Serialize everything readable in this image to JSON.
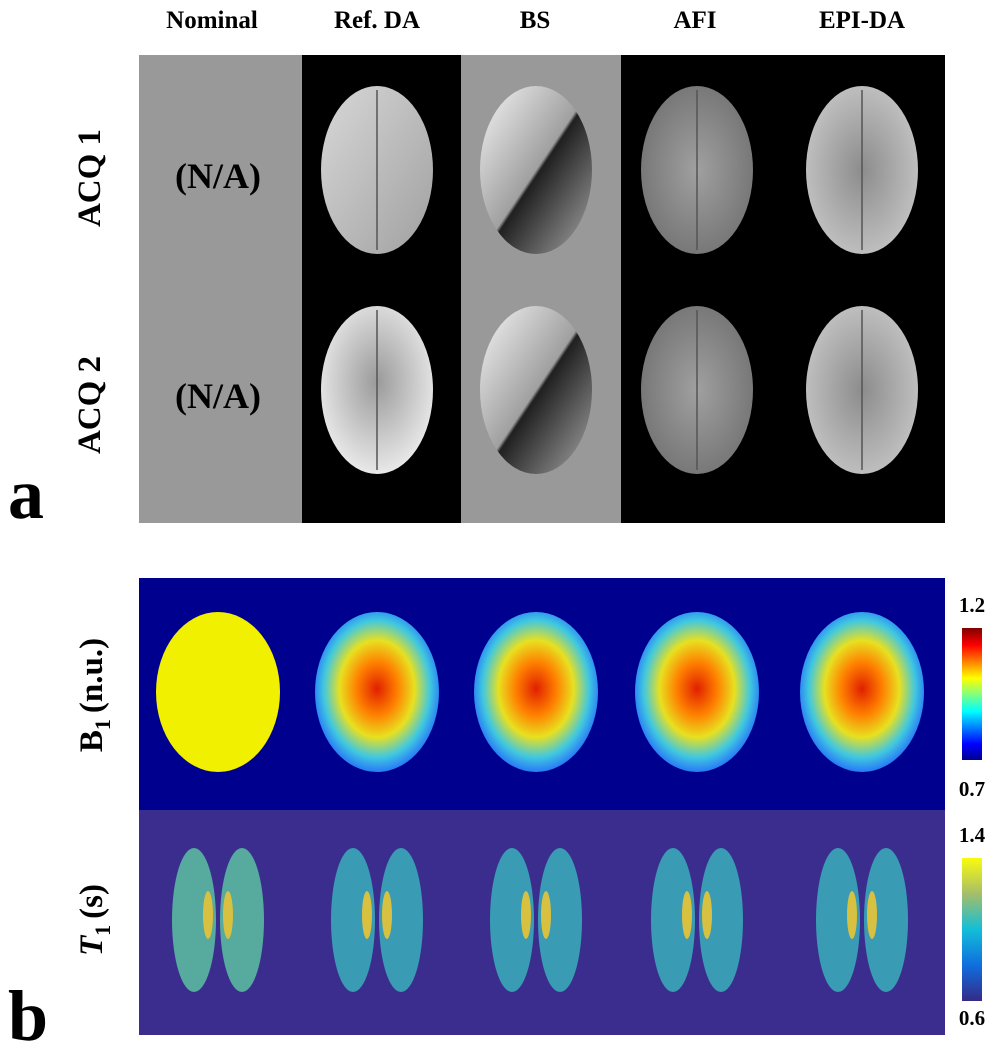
{
  "column_headers": [
    "Nominal",
    "Ref. DA",
    "BS",
    "AFI",
    "EPI-DA"
  ],
  "panel_a": {
    "label": "a",
    "rows": [
      "ACQ 1",
      "ACQ 2"
    ],
    "nominal_text": [
      "(N/A)",
      "(N/A)"
    ]
  },
  "panel_b": {
    "label": "b",
    "b1_label": {
      "symbol": "B",
      "subscript": "1",
      "unit": "(n.u.)"
    },
    "t1_label": {
      "symbol": "T",
      "subscript": "1",
      "unit": "(s)"
    },
    "b1_colorbar": {
      "max": 1.2,
      "min": 0.7
    },
    "t1_colorbar": {
      "max": 1.4,
      "min": 0.6
    }
  }
}
